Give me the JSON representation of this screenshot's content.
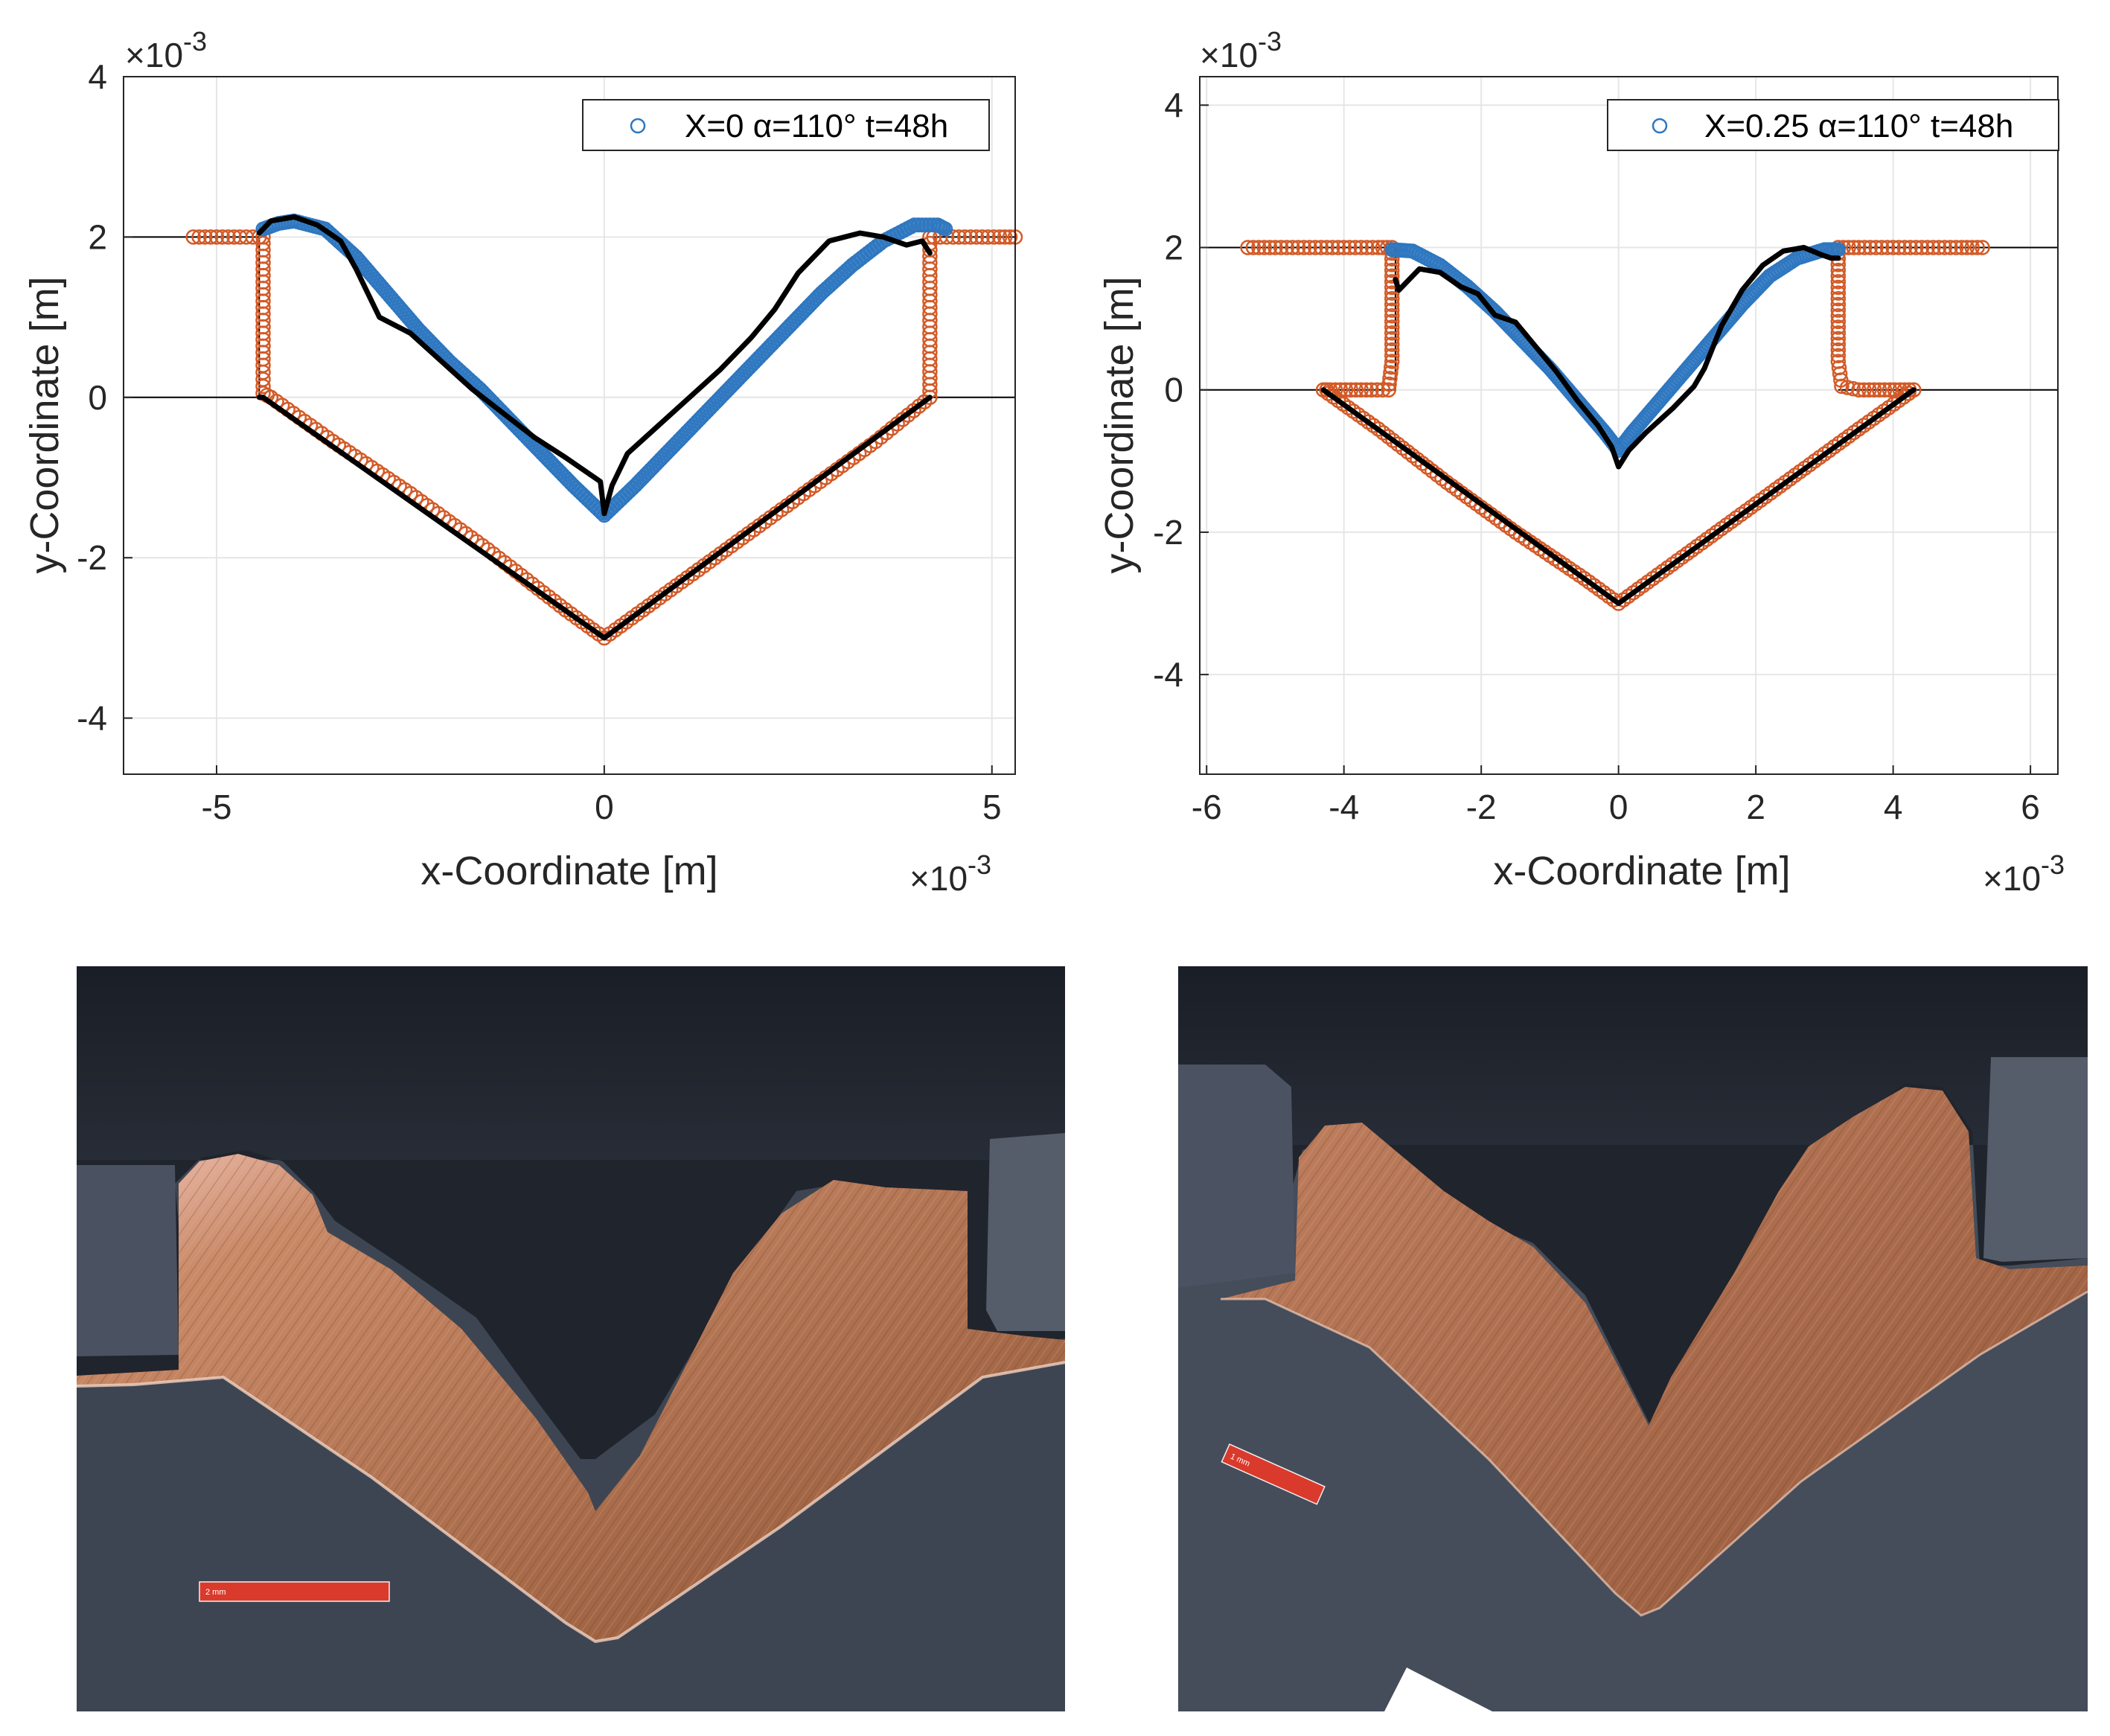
{
  "colors": {
    "simulated_series": "#2e77c0",
    "boundary_series": "#d35a27",
    "measured_outline": "#000000",
    "grid": "#e6e6e6",
    "photo_background": "#3d4450",
    "photo_top": "#1b1f27",
    "copper": "#b67955",
    "scale_bar": "#d93a2c"
  },
  "chart_data": [
    {
      "type": "scatter",
      "legend": "X=0 α=110° t=48h",
      "legend_location": "top-right",
      "xlabel": "x-Coordinate [m]",
      "ylabel": "y-Coordinate [m]",
      "x_exponent": "×10",
      "x_exponent_power": "-3",
      "y_exponent": "×10",
      "y_exponent_power": "-3",
      "xlim": [
        -6.2,
        5.3
      ],
      "ylim": [
        -4.7,
        4.0
      ],
      "xticks": [
        -5,
        0,
        5
      ],
      "xtick_labels": [
        "-5",
        "0",
        "5"
      ],
      "yticks": [
        -4,
        -2,
        0,
        2,
        4
      ],
      "ytick_labels": [
        "-4",
        "-2",
        "0",
        "2",
        "4"
      ],
      "grid": true,
      "rect": [
        [
          -6.2,
          0
        ],
        [
          -4.45,
          0
        ],
        [
          -4.45,
          2
        ],
        [
          -6.2,
          2
        ]
      ],
      "rect2": [
        [
          4.2,
          0
        ],
        [
          5.3,
          0
        ],
        [
          5.3,
          2
        ],
        [
          4.2,
          2
        ]
      ],
      "series": [
        {
          "name": "X=0 α=110° t=48h",
          "role": "simulated",
          "x": [
            -4.4,
            -4.2,
            -4.0,
            -3.6,
            -3.2,
            -2.8,
            -2.4,
            -2.0,
            -1.6,
            -1.2,
            -0.8,
            -0.4,
            0.0,
            0.4,
            0.8,
            1.2,
            1.6,
            2.0,
            2.4,
            2.8,
            3.2,
            3.6,
            4.0,
            4.3,
            4.4
          ],
          "y": [
            2.1,
            2.17,
            2.2,
            2.1,
            1.75,
            1.3,
            0.85,
            0.45,
            0.1,
            -0.3,
            -0.7,
            -1.1,
            -1.47,
            -1.1,
            -0.7,
            -0.3,
            0.1,
            0.5,
            0.9,
            1.3,
            1.65,
            1.95,
            2.15,
            2.15,
            2.1
          ]
        },
        {
          "role": "boundary",
          "x": [
            -5.3,
            -5.0,
            -4.7,
            -4.45,
            -4.4,
            -4.4,
            -4.4,
            -4.4,
            -4.4,
            -4.4,
            -4.3,
            -3.5,
            -2.5,
            -1.5,
            -0.5,
            0.0,
            0.5,
            1.5,
            2.5,
            3.5,
            4.2,
            4.2,
            4.2,
            4.2,
            4.2,
            4.2,
            4.25,
            4.5,
            4.8,
            5.1,
            5.3
          ],
          "y": [
            2.0,
            2.0,
            2.0,
            2.0,
            2.0,
            1.6,
            1.2,
            0.8,
            0.4,
            0.05,
            0.0,
            -0.55,
            -1.2,
            -1.9,
            -2.65,
            -3.0,
            -2.65,
            -1.95,
            -1.25,
            -0.55,
            0.0,
            0.4,
            0.8,
            1.2,
            1.6,
            2.0,
            2.0,
            2.0,
            2.0,
            2.0,
            2.0
          ]
        },
        {
          "role": "measured",
          "x": [
            -4.45,
            -4.3,
            -4.0,
            -3.7,
            -3.4,
            -3.2,
            -2.9,
            -2.5,
            -2.1,
            -1.7,
            -1.3,
            -0.9,
            -0.5,
            -0.2,
            -0.05,
            0.0,
            0.1,
            0.3,
            0.7,
            1.1,
            1.5,
            1.9,
            2.2,
            2.5,
            2.9,
            3.3,
            3.6,
            3.9,
            4.1,
            4.2
          ],
          "y": [
            2.05,
            2.2,
            2.25,
            2.15,
            1.95,
            1.6,
            1.0,
            0.8,
            0.45,
            0.1,
            -0.2,
            -0.5,
            -0.75,
            -0.95,
            -1.05,
            -1.45,
            -1.1,
            -0.7,
            -0.35,
            0.0,
            0.35,
            0.75,
            1.1,
            1.55,
            1.95,
            2.05,
            2.0,
            1.9,
            1.95,
            1.8
          ]
        },
        {
          "role": "measured",
          "x": [
            -4.45,
            -4.4,
            0.0,
            4.2
          ],
          "y": [
            0.0,
            0.0,
            -3.0,
            0.0
          ]
        }
      ]
    },
    {
      "type": "scatter",
      "legend": "X=0.25 α=110° t=48h",
      "legend_location": "top-right",
      "xlabel": "x-Coordinate [m]",
      "ylabel": "y-Coordinate [m]",
      "x_exponent": "×10",
      "x_exponent_power": "-3",
      "y_exponent": "×10",
      "y_exponent_power": "-3",
      "xlim": [
        -6.1,
        6.4
      ],
      "ylim": [
        -5.4,
        4.4
      ],
      "xticks": [
        -6,
        -4,
        -2,
        0,
        2,
        4,
        6
      ],
      "xtick_labels": [
        "-6",
        "-4",
        "-2",
        "0",
        "2",
        "4",
        "6"
      ],
      "yticks": [
        -4,
        -2,
        0,
        2,
        4
      ],
      "ytick_labels": [
        "-4",
        "-2",
        "0",
        "2",
        "4"
      ],
      "grid": true,
      "rect": [
        [
          -6.1,
          0
        ],
        [
          -3.25,
          0
        ],
        [
          -3.25,
          2
        ],
        [
          -6.1,
          2
        ]
      ],
      "rect2": [
        [
          3.2,
          0
        ],
        [
          6.4,
          0
        ],
        [
          6.4,
          2
        ],
        [
          3.2,
          2
        ]
      ],
      "series": [
        {
          "name": "X=0.25 α=110° t=48h",
          "role": "simulated",
          "x": [
            -3.3,
            -3.0,
            -2.6,
            -2.2,
            -1.8,
            -1.4,
            -1.0,
            -0.6,
            -0.2,
            0.0,
            0.2,
            0.6,
            1.0,
            1.4,
            1.8,
            2.2,
            2.6,
            3.0,
            3.2
          ],
          "y": [
            1.97,
            1.95,
            1.75,
            1.45,
            1.1,
            0.7,
            0.3,
            -0.15,
            -0.6,
            -0.85,
            -0.6,
            -0.15,
            0.3,
            0.75,
            1.2,
            1.6,
            1.85,
            1.97,
            1.97
          ]
        },
        {
          "role": "boundary",
          "x": [
            -5.4,
            -5.0,
            -4.5,
            -4.0,
            -3.5,
            -3.3,
            -3.3,
            -3.3,
            -3.3,
            -3.3,
            -3.35,
            -3.6,
            -3.9,
            -4.2,
            -4.3,
            -3.5,
            -2.5,
            -1.5,
            -0.5,
            0.0,
            0.5,
            1.5,
            2.5,
            3.5,
            4.3,
            4.1,
            3.8,
            3.5,
            3.25,
            3.2,
            3.2,
            3.2,
            3.2,
            3.2,
            3.5,
            4.0,
            4.5,
            5.0,
            5.3
          ],
          "y": [
            2.0,
            2.0,
            2.0,
            2.0,
            2.0,
            2.0,
            1.6,
            1.2,
            0.8,
            0.4,
            0.0,
            0.0,
            0.0,
            0.0,
            0.0,
            -0.55,
            -1.3,
            -2.0,
            -2.65,
            -3.0,
            -2.65,
            -1.95,
            -1.25,
            -0.55,
            0.0,
            0.0,
            0.0,
            0.0,
            0.05,
            0.4,
            0.8,
            1.2,
            1.6,
            2.0,
            2.0,
            2.0,
            2.0,
            2.0,
            2.0
          ]
        },
        {
          "role": "measured",
          "x": [
            -3.25,
            -3.2,
            -2.9,
            -2.6,
            -2.3,
            -2.05,
            -1.8,
            -1.5,
            -1.2,
            -0.9,
            -0.6,
            -0.3,
            -0.1,
            0.0,
            0.15,
            0.4,
            0.8,
            1.1,
            1.25,
            1.5,
            1.8,
            2.1,
            2.4,
            2.7,
            2.95,
            3.1,
            3.2
          ],
          "y": [
            1.55,
            1.4,
            1.7,
            1.65,
            1.45,
            1.35,
            1.05,
            0.95,
            0.6,
            0.25,
            -0.15,
            -0.5,
            -0.8,
            -1.08,
            -0.85,
            -0.6,
            -0.25,
            0.05,
            0.3,
            0.9,
            1.4,
            1.75,
            1.95,
            2.0,
            1.9,
            1.85,
            1.85
          ]
        },
        {
          "role": "measured",
          "x": [
            -4.3,
            0.0,
            4.3
          ],
          "y": [
            0.0,
            -3.0,
            0.0
          ]
        }
      ]
    }
  ],
  "photos": [
    {
      "scale_label": "2 mm"
    },
    {
      "scale_label": "1 mm"
    }
  ]
}
